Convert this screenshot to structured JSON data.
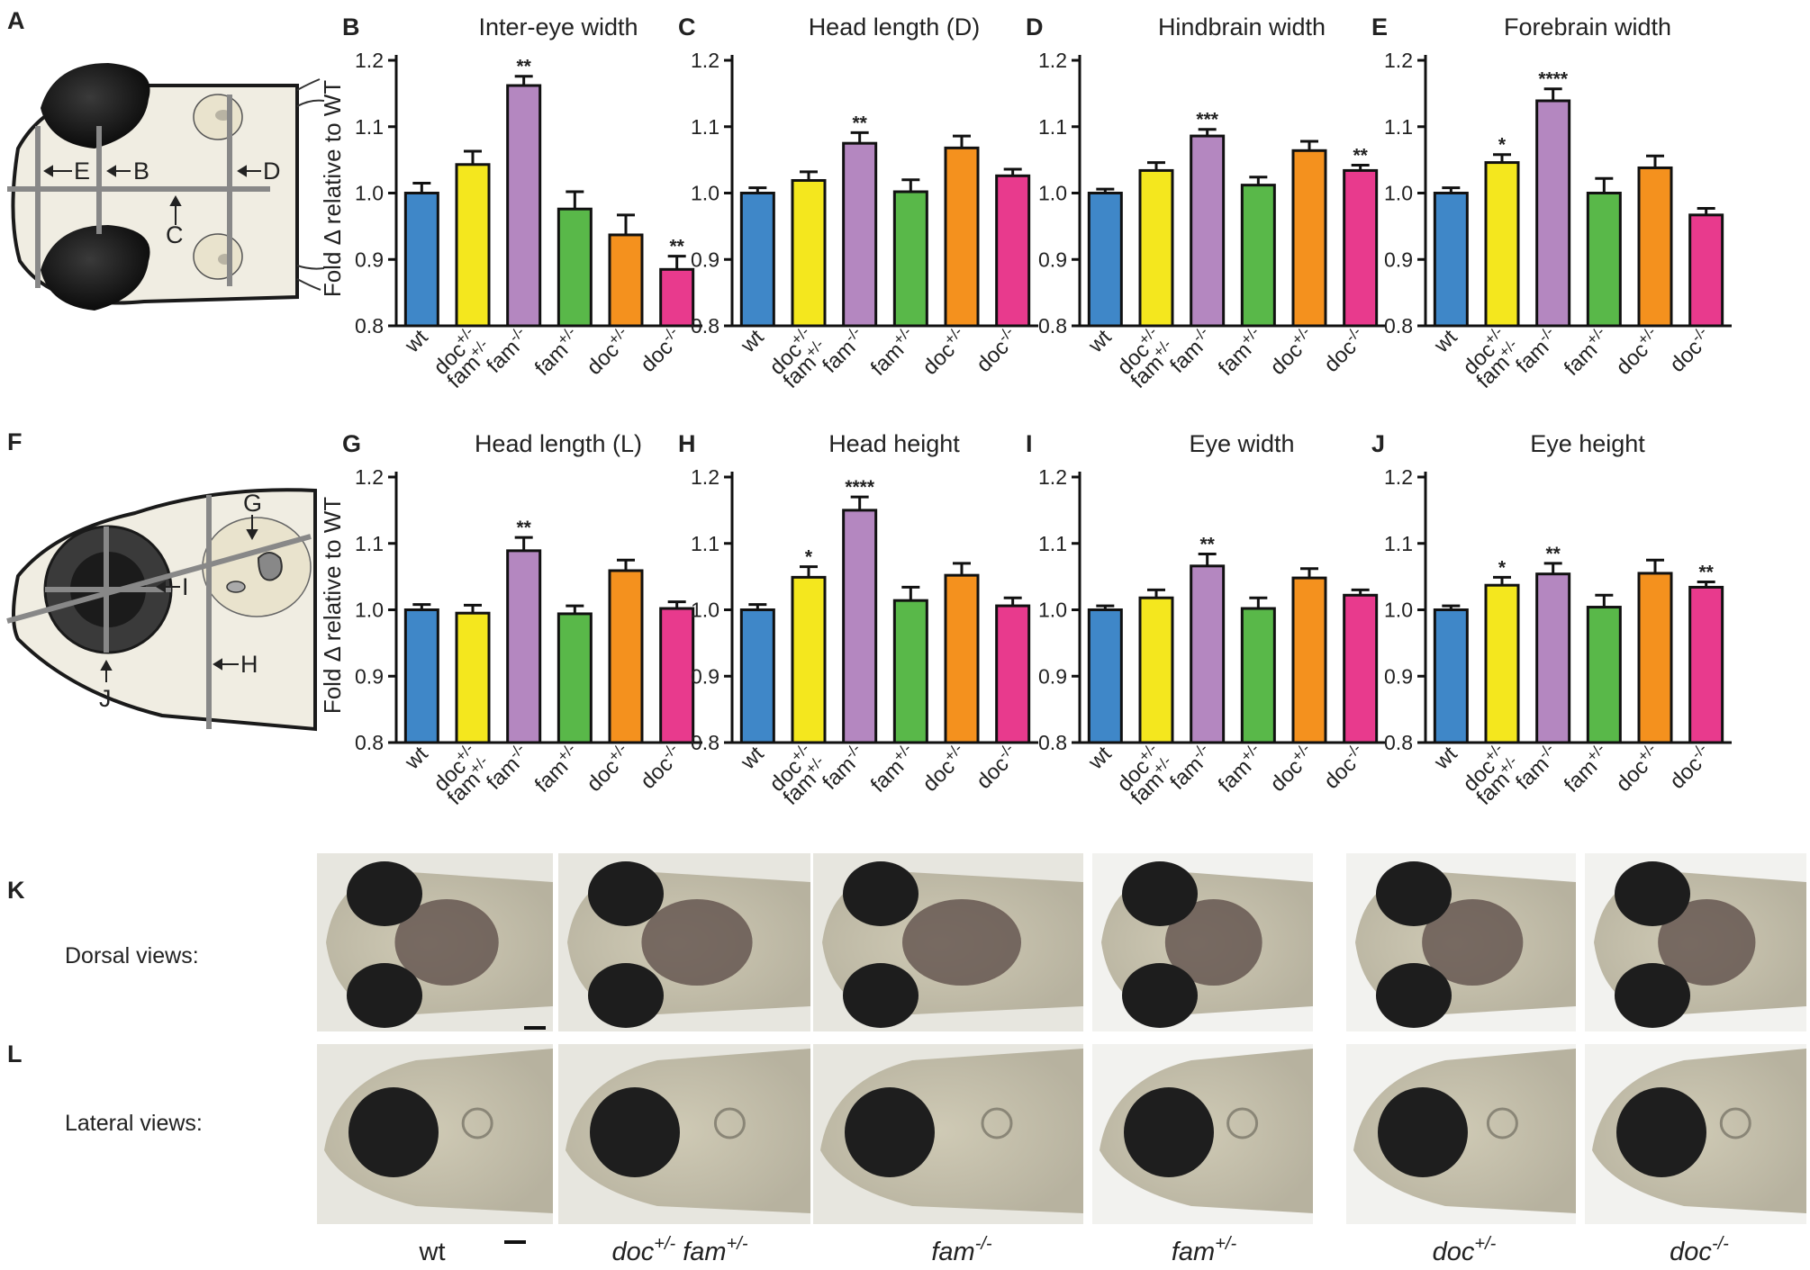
{
  "panel_letters": {
    "A": "A",
    "B": "B",
    "C": "C",
    "D": "D",
    "E": "E",
    "F": "F",
    "G": "G",
    "H": "H",
    "I": "I",
    "J": "J",
    "K": "K",
    "L": "L"
  },
  "y_axis_label": "Fold Δ relative to WT",
  "diagram_dorsal": {
    "E": "E",
    "B": "B",
    "D": "D",
    "C": "C"
  },
  "diagram_lateral": {
    "G": "G",
    "I": "I",
    "J": "J",
    "H": "H"
  },
  "views": {
    "dorsal": "Dorsal views:",
    "lateral": "Lateral views:"
  },
  "genotypes": [
    {
      "base": "wt",
      "sup": ""
    },
    {
      "base": "doc",
      "sup": "+/-",
      "base2": " fam",
      "sup2": "+/-"
    },
    {
      "base": "fam",
      "sup": "-/-"
    },
    {
      "base": "fam",
      "sup": "+/-"
    },
    {
      "base": "doc",
      "sup": "+/-"
    },
    {
      "base": "doc",
      "sup": "-/-"
    }
  ],
  "colors": {
    "wt": "#3f87c8",
    "doc_het_fam_het": "#f4e71e",
    "fam_mut": "#b487c0",
    "fam_het": "#59b849",
    "doc_het": "#f4911e",
    "doc_mut": "#e83a8d"
  },
  "chart_data": [
    {
      "panel": "B",
      "type": "bar",
      "title": "Inter-eye width",
      "ylim": [
        0.8,
        1.2
      ],
      "yticks": [
        "0.8",
        "0.9",
        "1.0",
        "1.1",
        "1.2"
      ],
      "categories": [
        "wt",
        "doc+/-\nfam+/-",
        "fam-/-",
        "fam+/-",
        "doc+/-",
        "doc-/-"
      ],
      "values": [
        1.0,
        1.043,
        1.162,
        0.976,
        0.937,
        0.885
      ],
      "errors": [
        0.015,
        0.02,
        0.014,
        0.026,
        0.03,
        0.02
      ],
      "significance": [
        "",
        "",
        "**",
        "",
        "",
        "**"
      ]
    },
    {
      "panel": "C",
      "type": "bar",
      "title": "Head length (D)",
      "ylim": [
        0.8,
        1.2
      ],
      "yticks": [
        "0.8",
        "0.9",
        "1.0",
        "1.1",
        "1.2"
      ],
      "categories": [
        "wt",
        "doc+/-\nfam+/-",
        "fam-/-",
        "fam+/-",
        "doc+/-",
        "doc-/-"
      ],
      "values": [
        1.0,
        1.019,
        1.075,
        1.002,
        1.068,
        1.026
      ],
      "errors": [
        0.008,
        0.013,
        0.016,
        0.018,
        0.018,
        0.01
      ],
      "significance": [
        "",
        "",
        "**",
        "",
        "",
        ""
      ]
    },
    {
      "panel": "D",
      "type": "bar",
      "title": "Hindbrain width",
      "ylim": [
        0.8,
        1.2
      ],
      "yticks": [
        "0.8",
        "0.9",
        "1.0",
        "1.1",
        "1.2"
      ],
      "categories": [
        "wt",
        "doc+/-\nfam+/-",
        "fam-/-",
        "fam+/-",
        "doc+/-",
        "doc-/-"
      ],
      "values": [
        1.0,
        1.034,
        1.086,
        1.012,
        1.064,
        1.034
      ],
      "errors": [
        0.006,
        0.012,
        0.01,
        0.012,
        0.014,
        0.008
      ],
      "significance": [
        "",
        "",
        "***",
        "",
        "",
        "**"
      ]
    },
    {
      "panel": "E",
      "type": "bar",
      "title": "Forebrain width",
      "ylim": [
        0.8,
        1.2
      ],
      "yticks": [
        "0.8",
        "0.9",
        "1.0",
        "1.1",
        "1.2"
      ],
      "categories": [
        "wt",
        "doc+/-\nfam+/-",
        "fam-/-",
        "fam+/-",
        "doc+/-",
        "doc-/-"
      ],
      "values": [
        1.0,
        1.046,
        1.139,
        1.0,
        1.038,
        0.967
      ],
      "errors": [
        0.008,
        0.012,
        0.018,
        0.022,
        0.018,
        0.01
      ],
      "significance": [
        "",
        "*",
        "****",
        "",
        "",
        ""
      ]
    },
    {
      "panel": "G",
      "type": "bar",
      "title": "Head length (L)",
      "ylim": [
        0.8,
        1.2
      ],
      "yticks": [
        "0.8",
        "0.9",
        "1.0",
        "1.1",
        "1.2"
      ],
      "categories": [
        "wt",
        "doc+/-\nfam+/-",
        "fam-/-",
        "fam+/-",
        "doc+/-",
        "doc-/-"
      ],
      "values": [
        1.0,
        0.995,
        1.089,
        0.994,
        1.059,
        1.002
      ],
      "errors": [
        0.008,
        0.012,
        0.02,
        0.012,
        0.016,
        0.01
      ],
      "significance": [
        "",
        "",
        "**",
        "",
        "",
        ""
      ]
    },
    {
      "panel": "H",
      "type": "bar",
      "title": "Head height",
      "ylim": [
        0.8,
        1.2
      ],
      "yticks": [
        "0.8",
        "0.9",
        "1.0",
        "1.1",
        "1.2"
      ],
      "categories": [
        "wt",
        "doc+/-\nfam+/-",
        "fam-/-",
        "fam+/-",
        "doc+/-",
        "doc-/-"
      ],
      "values": [
        1.0,
        1.049,
        1.15,
        1.014,
        1.052,
        1.006
      ],
      "errors": [
        0.008,
        0.016,
        0.02,
        0.02,
        0.018,
        0.012
      ],
      "significance": [
        "",
        "*",
        "****",
        "",
        "",
        ""
      ]
    },
    {
      "panel": "I",
      "type": "bar",
      "title": "Eye width",
      "ylim": [
        0.8,
        1.2
      ],
      "yticks": [
        "0.8",
        "0.9",
        "1.0",
        "1.1",
        "1.2"
      ],
      "categories": [
        "wt",
        "doc+/-\nfam+/-",
        "fam-/-",
        "fam+/-",
        "doc+/-",
        "doc-/-"
      ],
      "values": [
        1.0,
        1.018,
        1.066,
        1.002,
        1.048,
        1.022
      ],
      "errors": [
        0.006,
        0.012,
        0.018,
        0.016,
        0.014,
        0.008
      ],
      "significance": [
        "",
        "",
        "**",
        "",
        "",
        ""
      ]
    },
    {
      "panel": "J",
      "type": "bar",
      "title": "Eye height",
      "ylim": [
        0.8,
        1.2
      ],
      "yticks": [
        "0.8",
        "0.9",
        "1.0",
        "1.1",
        "1.2"
      ],
      "categories": [
        "wt",
        "doc+/-\nfam+/-",
        "fam-/-",
        "fam+/-",
        "doc+/-",
        "doc-/-"
      ],
      "values": [
        1.0,
        1.037,
        1.054,
        1.004,
        1.055,
        1.034
      ],
      "errors": [
        0.006,
        0.012,
        0.016,
        0.018,
        0.02,
        0.008
      ],
      "significance": [
        "",
        "*",
        "**",
        "",
        "",
        "**"
      ]
    }
  ]
}
